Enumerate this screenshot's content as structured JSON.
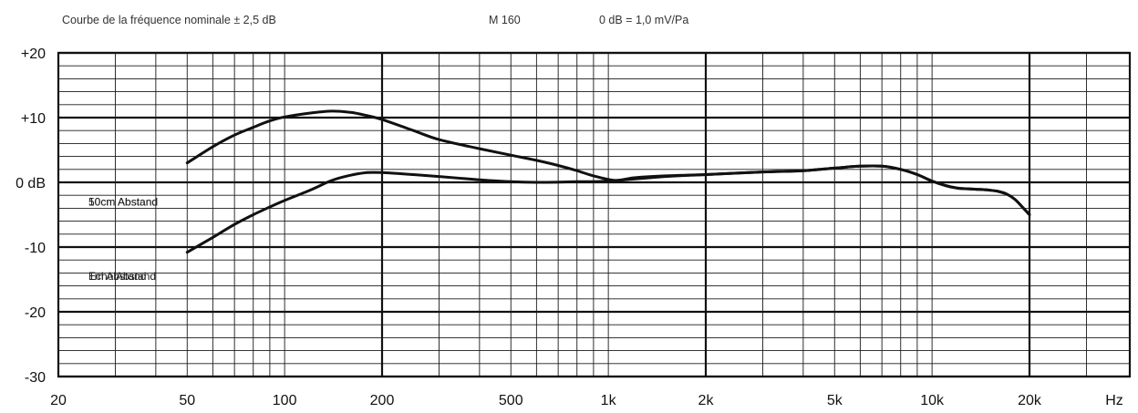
{
  "header": {
    "title": "Courbe de la fréquence nominale ± 2,5 dB",
    "model": "M 160",
    "reference": "0 dB = 1,0 mV/Pa"
  },
  "chart_data": {
    "type": "line",
    "xscale": "log",
    "xlim": [
      20,
      40000
    ],
    "ylim": [
      -30,
      20
    ],
    "grid": true,
    "y_ticks": [
      {
        "value": 20,
        "label": "+20"
      },
      {
        "value": 10,
        "label": "+10"
      },
      {
        "value": 0,
        "label": "0 dB"
      },
      {
        "value": -10,
        "label": "-10"
      },
      {
        "value": -20,
        "label": "-20"
      },
      {
        "value": -30,
        "label": "-30"
      }
    ],
    "x_ticks": [
      {
        "value": 20,
        "label": "20"
      },
      {
        "value": 50,
        "label": "50"
      },
      {
        "value": 100,
        "label": "100"
      },
      {
        "value": 200,
        "label": "200"
      },
      {
        "value": 500,
        "label": "500"
      },
      {
        "value": 1000,
        "label": "1k"
      },
      {
        "value": 2000,
        "label": "2k"
      },
      {
        "value": 5000,
        "label": "5k"
      },
      {
        "value": 10000,
        "label": "10k"
      },
      {
        "value": 20000,
        "label": "20k"
      }
    ],
    "x_unit": "Hz",
    "annotations": [
      {
        "text": "10cm Abstand",
        "x": 24,
        "y": -3
      },
      {
        "text": "50cm Abstand",
        "x": 24,
        "y": -3
      },
      {
        "text": "1m Abstand",
        "x": 24,
        "y": -14.5
      },
      {
        "text": "Echo Abstand",
        "x": 24,
        "y": -14.5
      }
    ],
    "series": [
      {
        "points": [
          [
            50,
            3
          ],
          [
            60,
            5.5
          ],
          [
            70,
            7.3
          ],
          [
            80,
            8.5
          ],
          [
            90,
            9.5
          ],
          [
            100,
            10.1
          ],
          [
            120,
            10.7
          ],
          [
            140,
            11
          ],
          [
            160,
            10.8
          ],
          [
            180,
            10.3
          ],
          [
            200,
            9.7
          ],
          [
            250,
            8
          ],
          [
            300,
            6.6
          ],
          [
            400,
            5.2
          ],
          [
            500,
            4.2
          ],
          [
            600,
            3.4
          ],
          [
            700,
            2.6
          ],
          [
            800,
            1.8
          ],
          [
            900,
            1
          ],
          [
            1050,
            0.3
          ],
          [
            1200,
            0.7
          ],
          [
            1500,
            1
          ],
          [
            2000,
            1.2
          ],
          [
            3000,
            1.6
          ],
          [
            4000,
            1.8
          ],
          [
            5000,
            2.2
          ],
          [
            6000,
            2.5
          ],
          [
            7000,
            2.5
          ],
          [
            8000,
            2
          ],
          [
            9000,
            1.2
          ],
          [
            10000,
            0.2
          ],
          [
            11000,
            -0.5
          ],
          [
            12000,
            -0.9
          ],
          [
            13000,
            -1
          ],
          [
            14000,
            -1.1
          ],
          [
            15000,
            -1.2
          ],
          [
            16000,
            -1.4
          ],
          [
            17000,
            -1.8
          ],
          [
            18000,
            -2.6
          ],
          [
            19000,
            -3.8
          ],
          [
            20000,
            -5
          ]
        ]
      },
      {
        "points": [
          [
            50,
            -10.8
          ],
          [
            60,
            -8.5
          ],
          [
            70,
            -6.5
          ],
          [
            80,
            -5
          ],
          [
            90,
            -3.8
          ],
          [
            100,
            -2.8
          ],
          [
            120,
            -1.2
          ],
          [
            140,
            0.3
          ],
          [
            160,
            1.1
          ],
          [
            180,
            1.5
          ],
          [
            200,
            1.5
          ],
          [
            250,
            1.2
          ],
          [
            300,
            0.9
          ],
          [
            400,
            0.4
          ],
          [
            500,
            0.1
          ],
          [
            600,
            0
          ],
          [
            800,
            0.1
          ],
          [
            1000,
            0.2
          ],
          [
            1500,
            0.9
          ],
          [
            2000,
            1.2
          ],
          [
            3000,
            1.6
          ],
          [
            4000,
            1.8
          ],
          [
            5000,
            2.2
          ],
          [
            6000,
            2.5
          ],
          [
            7000,
            2.5
          ],
          [
            8000,
            2
          ],
          [
            9000,
            1.2
          ],
          [
            10000,
            0.2
          ],
          [
            11000,
            -0.5
          ],
          [
            12000,
            -0.9
          ],
          [
            13000,
            -1
          ],
          [
            14000,
            -1.1
          ],
          [
            15000,
            -1.2
          ],
          [
            16000,
            -1.4
          ],
          [
            17000,
            -1.8
          ],
          [
            18000,
            -2.6
          ],
          [
            19000,
            -3.8
          ],
          [
            20000,
            -5
          ]
        ]
      }
    ]
  }
}
